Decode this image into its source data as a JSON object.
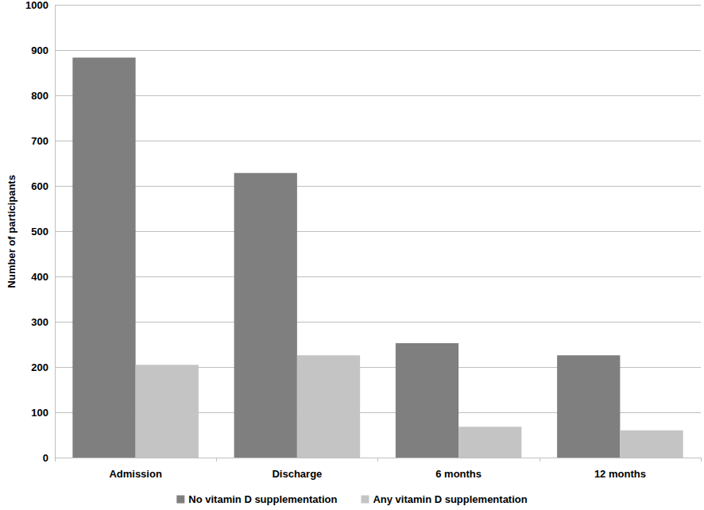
{
  "chart_data": {
    "type": "bar",
    "categories": [
      "Admission",
      "Discharge",
      "6 months",
      "12 months"
    ],
    "series": [
      {
        "name": "No vitamin D supplementation",
        "color": "#7f7f7f",
        "values": [
          884,
          629,
          253,
          226
        ]
      },
      {
        "name": "Any vitamin D supplementation",
        "color": "#c4c4c4",
        "values": [
          205,
          226,
          68,
          60
        ]
      }
    ],
    "ylabel": "Number of participants",
    "ylim": [
      0,
      1000
    ],
    "yticks": [
      0,
      100,
      200,
      300,
      400,
      500,
      600,
      700,
      800,
      900,
      1000
    ],
    "grid": true,
    "legend": "bottom"
  }
}
